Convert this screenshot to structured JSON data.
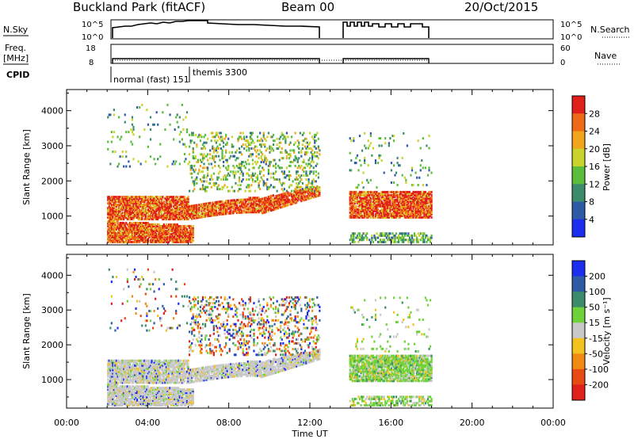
{
  "header": {
    "station": "Buckland Park (fitACF)",
    "beam": "Beam 00",
    "date": "20/Oct/2015"
  },
  "strips": {
    "nsky_label": "N.Sky",
    "nsky_top": "10^5",
    "nsky_bottom": "10^0",
    "nsearch_label": "N.Search",
    "nsearch_top": "10^5",
    "nsearch_bottom": "10^0",
    "freq_label_1": "Freq.",
    "freq_label_2": "[MHz]",
    "freq_top": "18",
    "freq_bottom": "8",
    "nave_label": "Nave",
    "nave_top": "60",
    "nave_bottom": "0",
    "cpid_label": "CPID",
    "cpid_1": "normal (fast) 151",
    "cpid_2": "themis 3300"
  },
  "time_axis": {
    "label": "Time UT",
    "ticks": [
      "00:00",
      "04:00",
      "08:00",
      "12:00",
      "16:00",
      "20:00",
      "00:00"
    ]
  },
  "chart_data": [
    {
      "type": "heatmap",
      "name": "power-panel",
      "xlabel": "Time UT",
      "ylabel": "Slant Range [km]",
      "xlim": [
        0,
        24
      ],
      "ylim": [
        180,
        4600
      ],
      "yticks": [
        1000,
        2000,
        3000,
        4000
      ],
      "colorbar": {
        "label": "Power [dB]",
        "ticks": [
          "4",
          "8",
          "12",
          "16",
          "20",
          "24",
          "28"
        ],
        "colors": [
          "#1b2ef0",
          "#2f5aa6",
          "#3a8c6a",
          "#5bbd3c",
          "#c8d42b",
          "#f0a51c",
          "#ee6a16",
          "#e0201b"
        ]
      },
      "echo_regions": [
        {
          "t": [
            2.0,
            6.0
          ],
          "range": [
            250,
            800
          ],
          "level": "high"
        },
        {
          "t": [
            2.0,
            12.5
          ],
          "range": [
            900,
            1550
          ],
          "level": "high"
        },
        {
          "t": [
            6.0,
            12.5
          ],
          "range": [
            1500,
            2800
          ],
          "level": "medium"
        },
        {
          "t": [
            8.5,
            12.5
          ],
          "range": [
            2600,
            3400
          ],
          "level": "low"
        },
        {
          "t": [
            13.9,
            18.0
          ],
          "range": [
            900,
            1650
          ],
          "level": "high"
        }
      ]
    },
    {
      "type": "heatmap",
      "name": "velocity-panel",
      "xlabel": "Time UT",
      "ylabel": "Slant Range [km]",
      "xlim": [
        0,
        24
      ],
      "ylim": [
        180,
        4600
      ],
      "yticks": [
        1000,
        2000,
        3000,
        4000
      ],
      "colorbar": {
        "label": "Velocity [m s⁻¹]",
        "ticks": [
          "200",
          "100",
          "50",
          "15",
          "-15",
          "-50",
          "-100",
          "-200"
        ],
        "colors": [
          "#1b2ef0",
          "#2f5aa6",
          "#3a8c6a",
          "#6ed23a",
          "#c8c8c8",
          "#f2c21d",
          "#f08a12",
          "#e84a14",
          "#e0201b"
        ]
      }
    }
  ]
}
